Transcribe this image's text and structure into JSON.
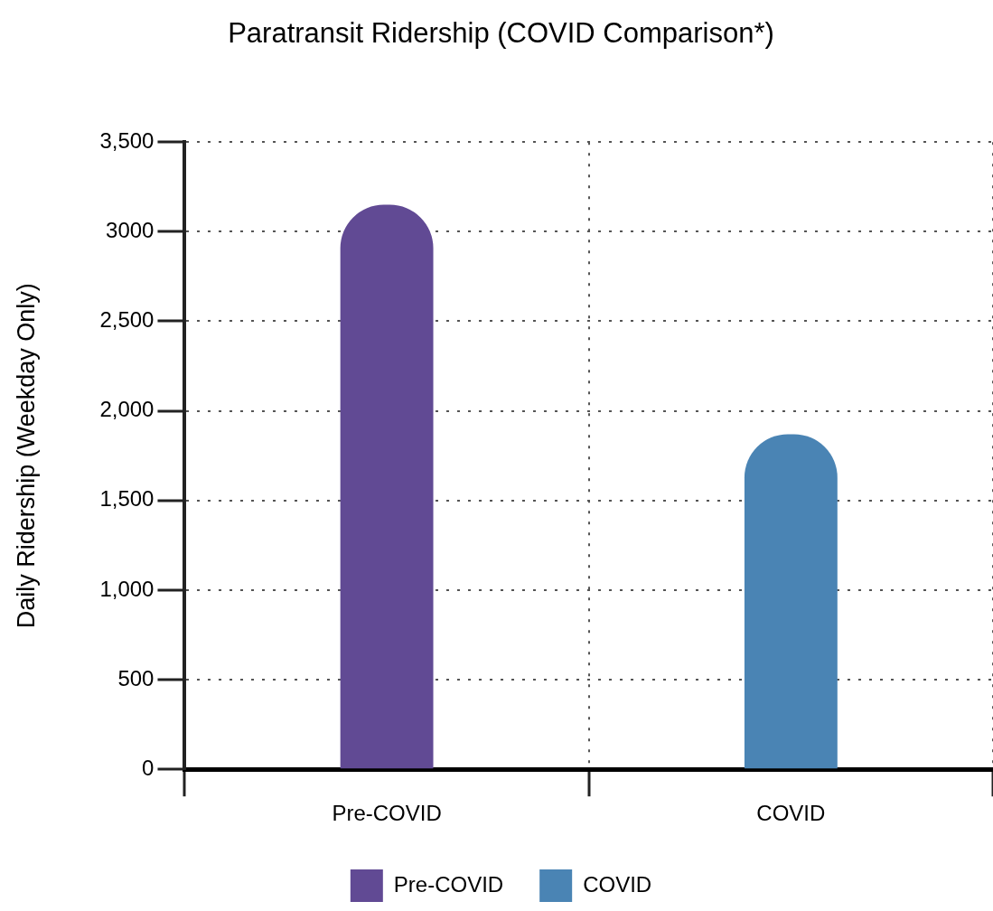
{
  "chart_data": {
    "type": "bar",
    "title": "Paratransit Ridership (COVID Comparison*)",
    "ylabel": "Daily Ridership (Weekday Only)",
    "categories": [
      "Pre-COVID",
      "COVID"
    ],
    "series": [
      {
        "name": "Pre-COVID",
        "color": "#614a94",
        "values": [
          3150,
          null
        ]
      },
      {
        "name": "COVID",
        "color": "#4a84b4",
        "values": [
          null,
          1870
        ]
      }
    ],
    "ylim": [
      0,
      3500
    ],
    "yticks": [
      {
        "value": 0,
        "label": "0"
      },
      {
        "value": 500,
        "label": "500"
      },
      {
        "value": 1000,
        "label": "1,000"
      },
      {
        "value": 1500,
        "label": "1,500"
      },
      {
        "value": 2000,
        "label": "2,000"
      },
      {
        "value": 2500,
        "label": "2,500"
      },
      3000,
      {
        "value": 3500,
        "label": "3,500"
      }
    ],
    "grid": true,
    "legend": "bottom"
  }
}
